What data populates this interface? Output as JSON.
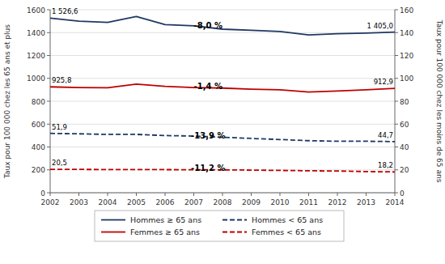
{
  "chart_data": {
    "type": "line",
    "x": [
      2002,
      2003,
      2004,
      2005,
      2006,
      2007,
      2008,
      2009,
      2010,
      2011,
      2012,
      2013,
      2014
    ],
    "xlim": [
      2002,
      2014
    ],
    "xticks": [
      2002,
      2003,
      2004,
      2005,
      2006,
      2007,
      2008,
      2009,
      2010,
      2011,
      2012,
      2013,
      2014
    ],
    "ylim": [
      0,
      1600
    ],
    "yticks": [
      0,
      200,
      400,
      600,
      800,
      1000,
      1200,
      1400,
      1600
    ],
    "y2lim": [
      0,
      160
    ],
    "y2ticks": [
      0,
      20,
      40,
      60,
      80,
      100,
      120,
      140,
      160
    ],
    "ylabel": "Taux pour 100 000 chez les 65 ans et plus",
    "y2label": "Taux pour 100 000 chez les moins de 65 ans",
    "grid": true,
    "legend": "bottom",
    "series": [
      {
        "name": "Hommes ≥ 65 ans",
        "color": "#1F3864",
        "line_style": "solid",
        "values": [
          1526.6,
          1500,
          1490,
          1540,
          1470,
          1460,
          1430,
          1420,
          1410,
          1380,
          1390,
          1395,
          1405.0
        ],
        "value_labels": [
          "1 526,6",
          null,
          null,
          null,
          null,
          null,
          null,
          null,
          null,
          null,
          null,
          null,
          "1 405,0"
        ]
      },
      {
        "name": "Femmes ≥ 65 ans",
        "color": "#C00000",
        "line_style": "solid",
        "values": [
          925.8,
          920,
          918,
          950,
          930,
          920,
          915,
          905,
          900,
          880,
          890,
          900,
          912.9
        ],
        "value_labels": [
          "925,8",
          null,
          null,
          null,
          null,
          null,
          null,
          null,
          null,
          null,
          null,
          null,
          "912,9"
        ]
      },
      {
        "name": "Hommes < 65 ans",
        "color": "#1F3864",
        "line_style": "dashed",
        "axis": "y2",
        "values": [
          51.9,
          51.5,
          51.0,
          51.0,
          50.0,
          49.5,
          48.5,
          47.5,
          46.5,
          45.5,
          45.0,
          45.0,
          44.7
        ],
        "value_labels": [
          "51,9",
          null,
          null,
          null,
          null,
          null,
          null,
          null,
          null,
          null,
          null,
          null,
          "44,7"
        ]
      },
      {
        "name": "Femmes < 65 ans",
        "color": "#C00000",
        "line_style": "dashed",
        "axis": "y2",
        "values": [
          20.5,
          20.4,
          20.3,
          20.3,
          20.2,
          20.1,
          20.0,
          19.8,
          19.5,
          19.2,
          19.0,
          18.5,
          18.2
        ],
        "value_labels": [
          "20,5",
          null,
          null,
          null,
          null,
          null,
          null,
          null,
          null,
          null,
          null,
          null,
          "18,2"
        ]
      }
    ],
    "annotations": [
      {
        "text": "-8,0 %",
        "x": 2007.5,
        "y": 1460
      },
      {
        "text": "-1,4 %",
        "x": 2007.5,
        "y": 930
      },
      {
        "text": "-13,9 %",
        "x": 2007.5,
        "y": 500
      },
      {
        "text": "-11,2 %",
        "x": 2007.5,
        "y": 213
      }
    ]
  }
}
